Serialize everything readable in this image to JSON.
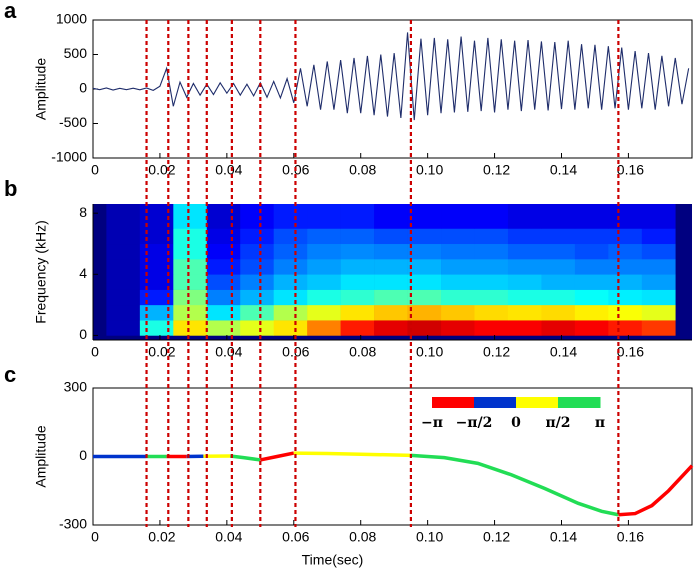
{
  "chart_data": [
    {
      "type": "line",
      "panel_label": "a",
      "y_label": "Amplitude",
      "xlim": [
        0,
        0.179
      ],
      "xticks": [
        0,
        0.02,
        0.04,
        0.06,
        0.08,
        {
          "value": 0.1,
          "label": "0.10"
        },
        0.12,
        0.14,
        0.16
      ],
      "ylim": [
        -1000,
        1000
      ],
      "yticks": [
        -1000,
        -500,
        0,
        500,
        1000
      ],
      "x": [
        0,
        0.002,
        0.004,
        0.006,
        0.008,
        0.01,
        0.012,
        0.014,
        0.016,
        0.018,
        0.02,
        0.022,
        0.024,
        0.026,
        0.028,
        0.03,
        0.032,
        0.034,
        0.036,
        0.038,
        0.04,
        0.042,
        0.044,
        0.046,
        0.048,
        0.05,
        0.052,
        0.054,
        0.056,
        0.058,
        0.06,
        0.062,
        0.064,
        0.066,
        0.068,
        0.07,
        0.072,
        0.074,
        0.076,
        0.078,
        0.08,
        0.082,
        0.084,
        0.086,
        0.088,
        0.09,
        0.092,
        0.094,
        0.096,
        0.098,
        0.1,
        0.102,
        0.104,
        0.106,
        0.108,
        0.11,
        0.112,
        0.114,
        0.116,
        0.118,
        0.12,
        0.122,
        0.124,
        0.126,
        0.128,
        0.13,
        0.132,
        0.134,
        0.136,
        0.138,
        0.14,
        0.142,
        0.144,
        0.146,
        0.148,
        0.15,
        0.152,
        0.154,
        0.156,
        0.158,
        0.16,
        0.162,
        0.164,
        0.166,
        0.168,
        0.17,
        0.172,
        0.174,
        0.176,
        0.178
      ],
      "series": [
        {
          "color": "#1f2d6b",
          "values": [
            10,
            -10,
            15,
            -15,
            10,
            -10,
            12,
            -12,
            15,
            -20,
            40,
            300,
            -250,
            100,
            -120,
            80,
            -90,
            70,
            -80,
            90,
            -60,
            80,
            -90,
            70,
            -100,
            90,
            -120,
            110,
            -130,
            150,
            -200,
            300,
            -250,
            350,
            -300,
            400,
            -300,
            420,
            -350,
            450,
            -350,
            480,
            -380,
            500,
            -400,
            520,
            -420,
            820,
            -450,
            730,
            -380,
            740,
            -350,
            720,
            -340,
            760,
            -330,
            700,
            -320,
            740,
            -340,
            720,
            -300,
            700,
            -320,
            710,
            -300,
            690,
            -310,
            680,
            -290,
            700,
            -300,
            650,
            -280,
            640,
            -300,
            620,
            -280,
            600,
            -300,
            550,
            -280,
            520,
            -300,
            480,
            -250,
            450,
            -220,
            300
          ]
        }
      ]
    },
    {
      "type": "heatmap",
      "panel_label": "b",
      "y_label": "Frequency (kHz)",
      "xlim": [
        0,
        0.179
      ],
      "xticks": [
        0,
        0.02,
        0.04,
        0.06,
        0.08,
        {
          "value": 0.1,
          "label": "0.10"
        },
        0.12,
        0.14,
        0.16
      ],
      "ylim": [
        -0.3,
        8.6
      ],
      "yticks": [
        0,
        4,
        8
      ],
      "time_bins": [
        0.004,
        0.014,
        0.024,
        0.034,
        0.044,
        0.054,
        0.064,
        0.074,
        0.084,
        0.094,
        0.104,
        0.114,
        0.124,
        0.134,
        0.144,
        0.154,
        0.164,
        0.174
      ],
      "freq_bins": [
        0,
        1,
        2,
        3,
        4,
        5,
        6,
        7,
        8.6
      ],
      "values": [
        [
          0.05,
          0.4,
          0.65,
          0.55,
          0.6,
          0.65,
          0.75,
          0.85,
          0.9,
          0.92,
          0.9,
          0.88,
          0.88,
          0.9,
          0.88,
          0.85,
          0.82
        ],
        [
          0.05,
          0.3,
          0.55,
          0.35,
          0.45,
          0.55,
          0.6,
          0.65,
          0.68,
          0.7,
          0.68,
          0.66,
          0.65,
          0.66,
          0.64,
          0.62,
          0.6
        ],
        [
          0.05,
          0.15,
          0.5,
          0.25,
          0.3,
          0.35,
          0.4,
          0.42,
          0.45,
          0.45,
          0.42,
          0.42,
          0.4,
          0.4,
          0.38,
          0.36,
          0.35
        ],
        [
          0.05,
          0.1,
          0.45,
          0.2,
          0.25,
          0.3,
          0.32,
          0.35,
          0.35,
          0.35,
          0.33,
          0.33,
          0.32,
          0.3,
          0.3,
          0.3,
          0.28
        ],
        [
          0.05,
          0.1,
          0.45,
          0.15,
          0.2,
          0.25,
          0.28,
          0.3,
          0.3,
          0.3,
          0.28,
          0.28,
          0.27,
          0.27,
          0.25,
          0.25,
          0.25
        ],
        [
          0.05,
          0.1,
          0.4,
          0.12,
          0.18,
          0.22,
          0.25,
          0.26,
          0.25,
          0.25,
          0.24,
          0.24,
          0.22,
          0.22,
          0.2,
          0.22,
          0.2
        ],
        [
          0.05,
          0.08,
          0.4,
          0.1,
          0.15,
          0.2,
          0.22,
          0.22,
          0.2,
          0.2,
          0.2,
          0.2,
          0.18,
          0.18,
          0.18,
          0.18,
          0.15
        ],
        [
          0.05,
          0.08,
          0.35,
          0.08,
          0.12,
          0.15,
          0.15,
          0.15,
          0.12,
          0.12,
          0.12,
          0.12,
          0.1,
          0.1,
          0.1,
          0.1,
          0.1
        ]
      ]
    },
    {
      "type": "phase_line",
      "panel_label": "c",
      "y_label": "Amplitude",
      "x_label": "Time(sec)",
      "xlim": [
        0,
        0.179
      ],
      "xticks": [
        0,
        0.02,
        0.04,
        0.06,
        0.08,
        {
          "value": 0.1,
          "label": "0.10"
        },
        0.12,
        0.14,
        0.16
      ],
      "ylim": [
        -300,
        300
      ],
      "yticks": [
        -300,
        0,
        300
      ],
      "colorbar": {
        "colors": [
          "#ff0000",
          "#0033cc",
          "#ffff00",
          "#22dd55"
        ],
        "labels": [
          "−π",
          "−π/2",
          "0",
          "π/2",
          "π"
        ]
      },
      "series": [
        {
          "color": "#0033cc",
          "x": [
            0,
            0.016
          ],
          "values": [
            0,
            0
          ]
        },
        {
          "color": "#22dd55",
          "x": [
            0.016,
            0.022
          ],
          "values": [
            0,
            0
          ]
        },
        {
          "color": "#ff0000",
          "x": [
            0.022,
            0.028
          ],
          "values": [
            0,
            0
          ]
        },
        {
          "color": "#0033cc",
          "x": [
            0.028,
            0.033
          ],
          "values": [
            0,
            1
          ]
        },
        {
          "color": "#ffff00",
          "x": [
            0.033,
            0.041
          ],
          "values": [
            1,
            2
          ]
        },
        {
          "color": "#22dd55",
          "x": [
            0.041,
            0.045,
            0.05
          ],
          "values": [
            2,
            -5,
            -15
          ]
        },
        {
          "color": "#ff0000",
          "x": [
            0.05,
            0.055,
            0.06
          ],
          "values": [
            -15,
            0,
            15
          ]
        },
        {
          "color": "#ffff00",
          "x": [
            0.06,
            0.07,
            0.08,
            0.095
          ],
          "values": [
            15,
            13,
            10,
            5
          ]
        },
        {
          "color": "#22dd55",
          "x": [
            0.095,
            0.105,
            0.115,
            0.125,
            0.135,
            0.145,
            0.152,
            0.157
          ],
          "values": [
            5,
            -5,
            -30,
            -80,
            -140,
            -205,
            -240,
            -255
          ]
        },
        {
          "color": "#ff0000",
          "x": [
            0.157,
            0.162,
            0.167,
            0.172,
            0.179
          ],
          "values": [
            -255,
            -250,
            -215,
            -150,
            -40
          ]
        }
      ]
    }
  ],
  "event_times": [
    0.016,
    0.0225,
    0.0285,
    0.034,
    0.0415,
    0.05,
    0.0605,
    0.095,
    0.157
  ]
}
